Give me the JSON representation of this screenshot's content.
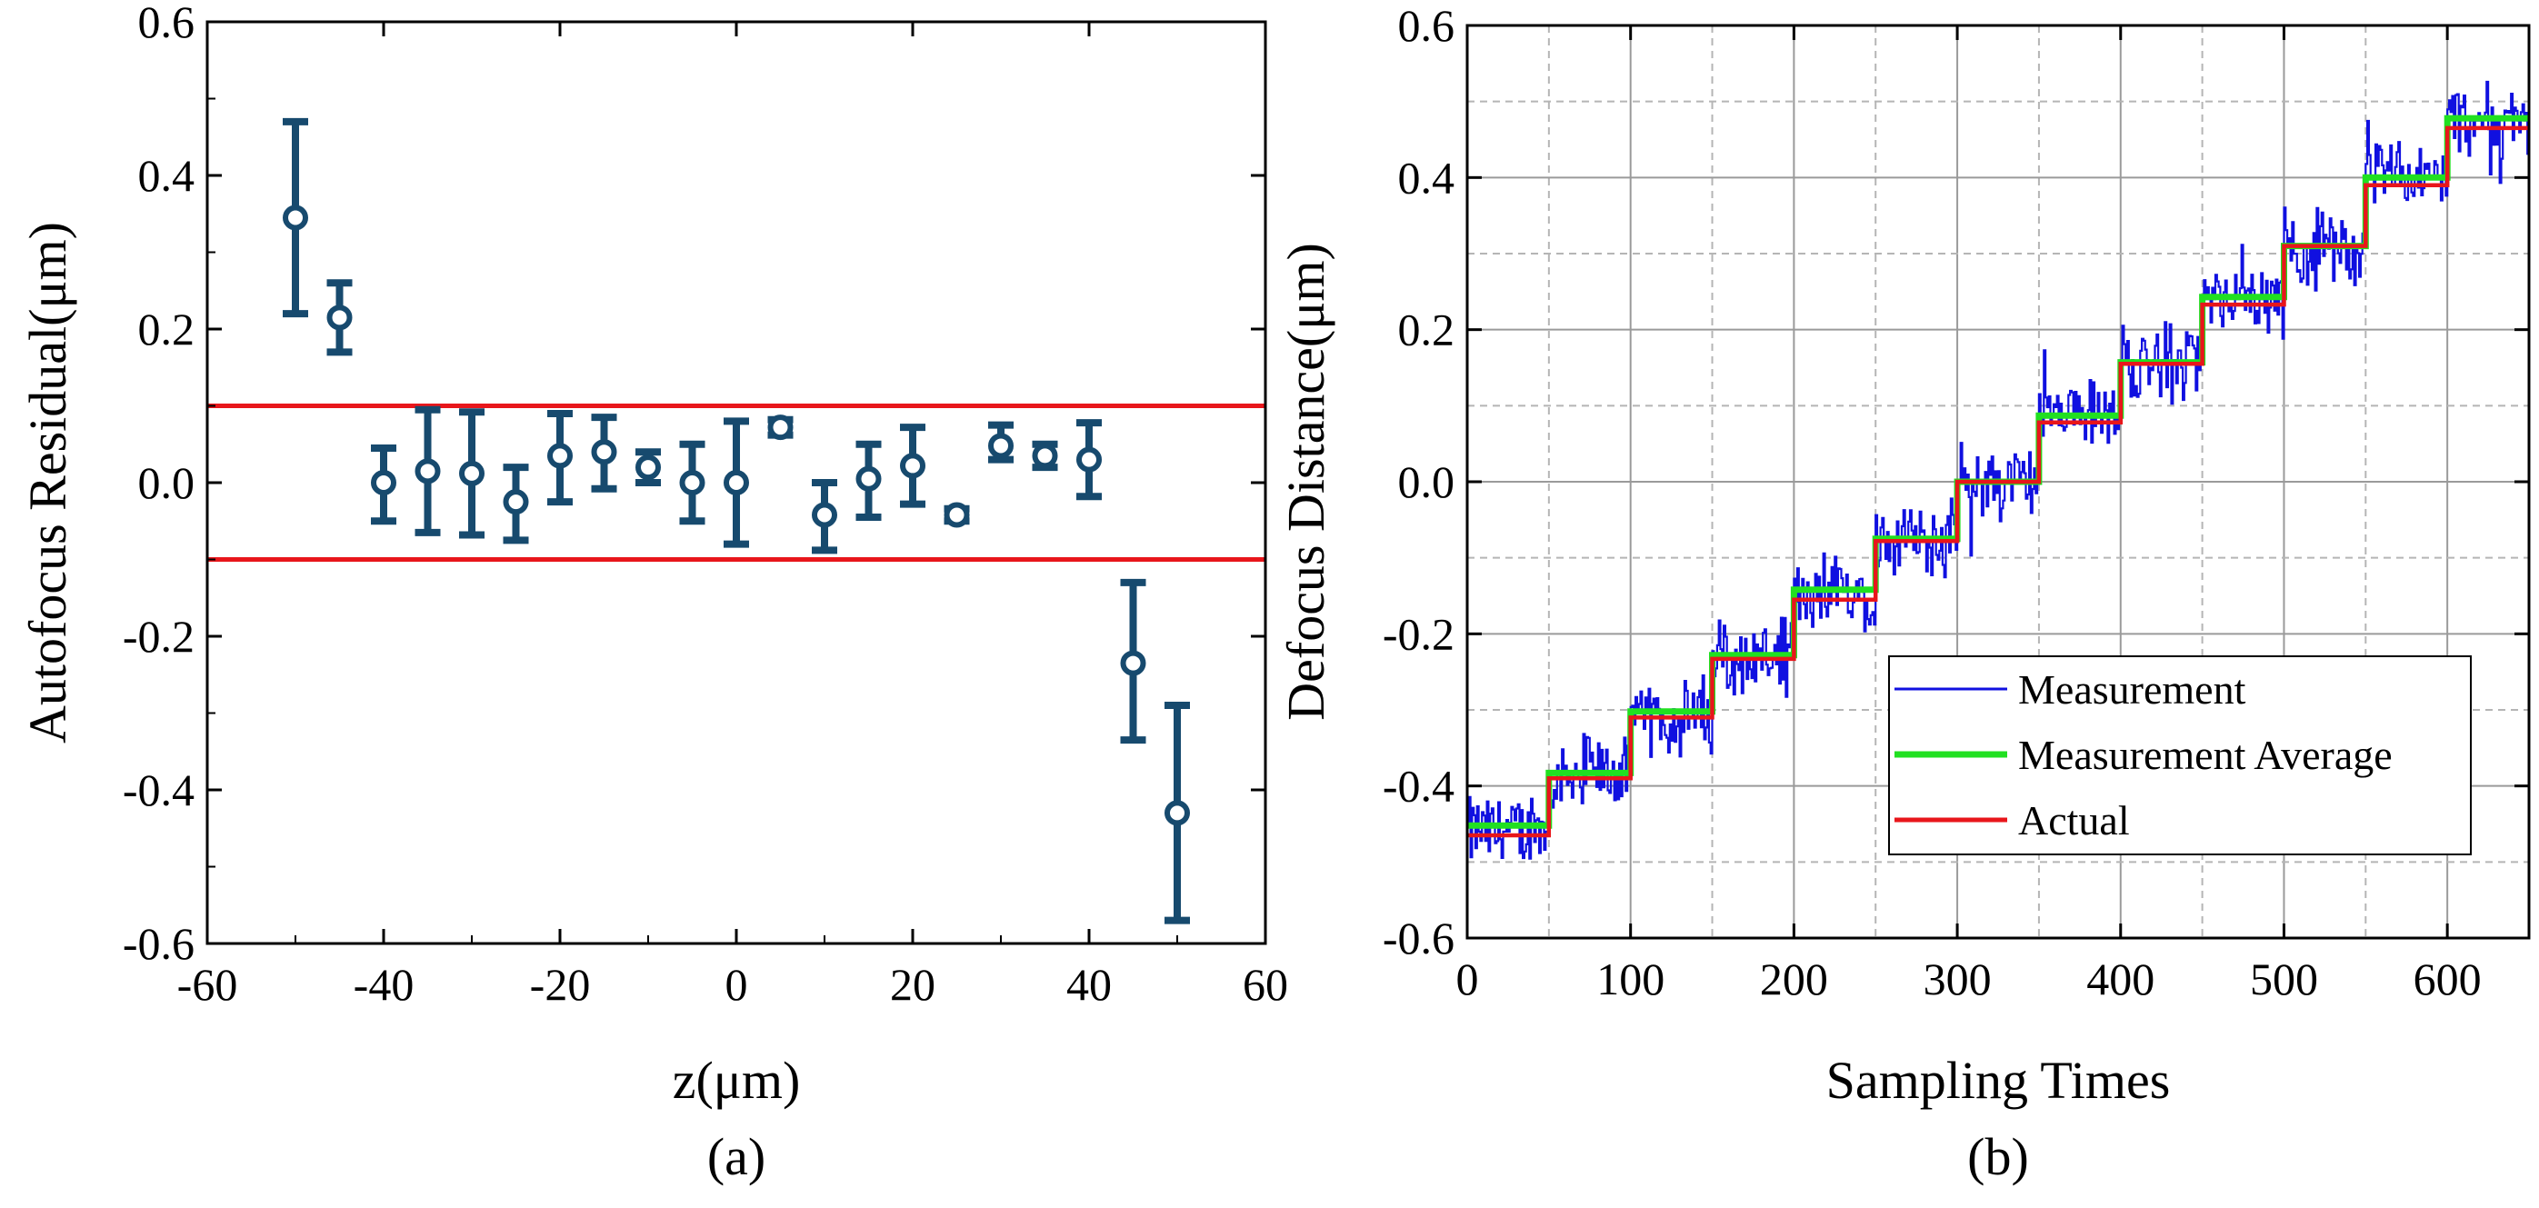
{
  "chart_data": [
    {
      "id": "a",
      "type": "scatter",
      "caption": "(a)",
      "xlabel": "z(μm)",
      "ylabel": "Autofocus Residual(μm)",
      "xlim": [
        -60,
        60
      ],
      "ylim": [
        -0.6,
        0.6
      ],
      "xticks": [
        -60,
        -40,
        -20,
        0,
        20,
        40,
        60
      ],
      "xtick_labels": [
        "-60",
        "-40",
        "-20",
        "0",
        "20",
        "40",
        "60"
      ],
      "yticks": [
        -0.6,
        -0.4,
        -0.2,
        0.0,
        0.2,
        0.4,
        0.6
      ],
      "ytick_labels": [
        "-0.6",
        "-0.4",
        "-0.2",
        "0.0",
        "0.2",
        "0.4",
        "0.6"
      ],
      "reference_lines": [
        0.1,
        -0.1
      ],
      "reference_color": "#e8161b",
      "marker_color": "#174a6e",
      "points": [
        {
          "x": -50,
          "y": 0.345,
          "lo": 0.22,
          "hi": 0.47
        },
        {
          "x": -45,
          "y": 0.215,
          "lo": 0.17,
          "hi": 0.26
        },
        {
          "x": -40,
          "y": 0.0,
          "lo": -0.05,
          "hi": 0.045
        },
        {
          "x": -35,
          "y": 0.015,
          "lo": -0.065,
          "hi": 0.095
        },
        {
          "x": -30,
          "y": 0.012,
          "lo": -0.068,
          "hi": 0.092
        },
        {
          "x": -25,
          "y": -0.025,
          "lo": -0.075,
          "hi": 0.02
        },
        {
          "x": -20,
          "y": 0.035,
          "lo": -0.025,
          "hi": 0.09
        },
        {
          "x": -15,
          "y": 0.04,
          "lo": -0.008,
          "hi": 0.085
        },
        {
          "x": -10,
          "y": 0.02,
          "lo": 0.0,
          "hi": 0.04
        },
        {
          "x": -5,
          "y": 0.0,
          "lo": -0.05,
          "hi": 0.05
        },
        {
          "x": 0,
          "y": 0.0,
          "lo": -0.08,
          "hi": 0.08
        },
        {
          "x": 5,
          "y": 0.072,
          "lo": 0.062,
          "hi": 0.082
        },
        {
          "x": 10,
          "y": -0.042,
          "lo": -0.088,
          "hi": 0.0
        },
        {
          "x": 15,
          "y": 0.005,
          "lo": -0.045,
          "hi": 0.05
        },
        {
          "x": 20,
          "y": 0.022,
          "lo": -0.028,
          "hi": 0.072
        },
        {
          "x": 25,
          "y": -0.042,
          "lo": -0.05,
          "hi": -0.034
        },
        {
          "x": 30,
          "y": 0.048,
          "lo": 0.03,
          "hi": 0.075
        },
        {
          "x": 35,
          "y": 0.035,
          "lo": 0.02,
          "hi": 0.05
        },
        {
          "x": 40,
          "y": 0.03,
          "lo": -0.018,
          "hi": 0.078
        },
        {
          "x": 45,
          "y": -0.235,
          "lo": -0.335,
          "hi": -0.13
        },
        {
          "x": 50,
          "y": -0.43,
          "lo": -0.57,
          "hi": -0.29
        }
      ]
    },
    {
      "id": "b",
      "type": "line",
      "caption": "(b)",
      "xlabel": "Sampling Times",
      "ylabel": "Defocus Distance(μm)",
      "xlim": [
        0,
        650
      ],
      "ylim": [
        -0.6,
        0.6
      ],
      "grid": true,
      "xticks": [
        0,
        100,
        200,
        300,
        400,
        500,
        600
      ],
      "xtick_labels": [
        "0",
        "100",
        "200",
        "300",
        "400",
        "500",
        "600"
      ],
      "yticks": [
        -0.6,
        -0.4,
        -0.2,
        0.0,
        0.2,
        0.4,
        0.6
      ],
      "ytick_labels": [
        "-0.6",
        "-0.4",
        "-0.2",
        "0.0",
        "0.2",
        "0.4",
        "0.6"
      ],
      "legend_position": "lower-right",
      "step_width": 50,
      "series": [
        {
          "name": "Measurement",
          "color": "#1010e0",
          "kind": "noisy-steps",
          "step_levels": [
            -0.46,
            -0.385,
            -0.31,
            -0.23,
            -0.145,
            -0.075,
            0.0,
            0.085,
            0.16,
            0.24,
            0.31,
            0.4,
            0.475
          ],
          "noise_amplitude": 0.045
        },
        {
          "name": "Measurement Average",
          "color": "#21e021",
          "kind": "steps",
          "step_levels": [
            -0.452,
            -0.383,
            -0.302,
            -0.228,
            -0.142,
            -0.075,
            0.0,
            0.087,
            0.157,
            0.243,
            0.31,
            0.4,
            0.478
          ]
        },
        {
          "name": "Actual",
          "color": "#e8161b",
          "kind": "steps",
          "step_levels": [
            -0.465,
            -0.39,
            -0.31,
            -0.233,
            -0.155,
            -0.078,
            0.0,
            0.078,
            0.155,
            0.233,
            0.31,
            0.39,
            0.465
          ]
        }
      ]
    }
  ]
}
